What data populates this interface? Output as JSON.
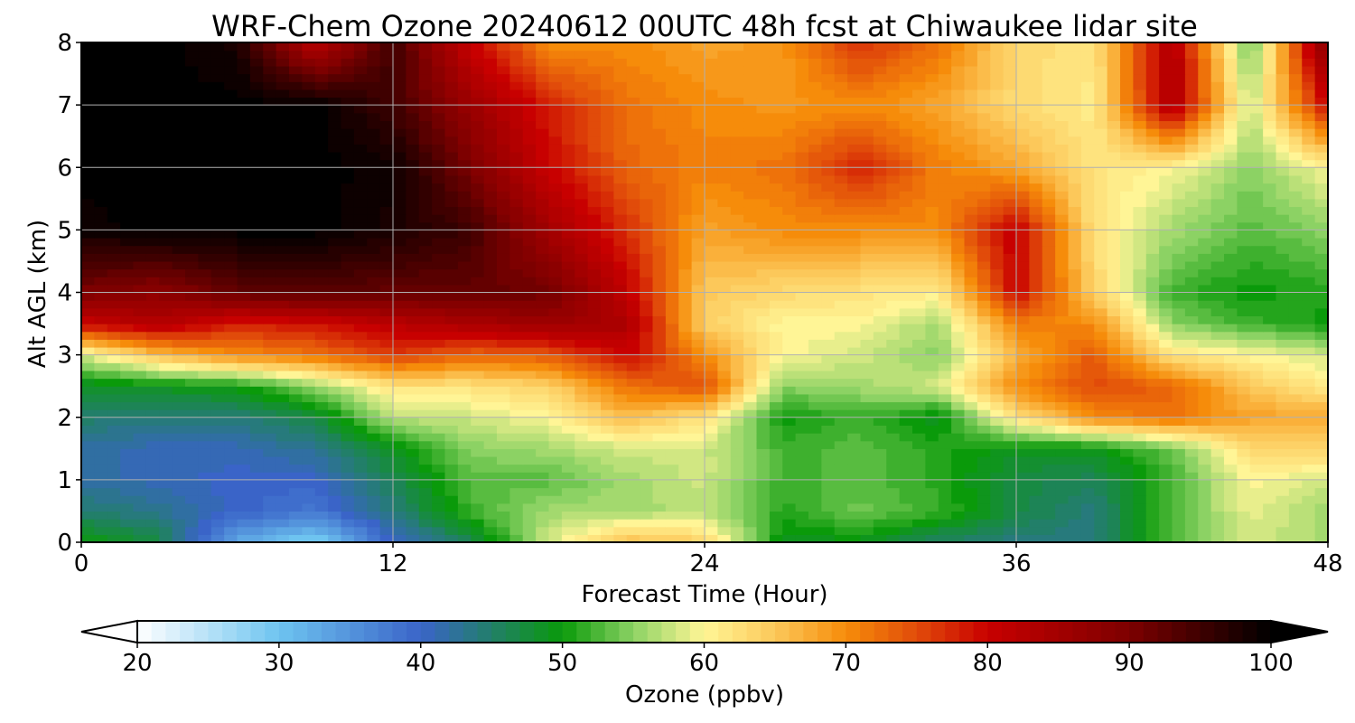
{
  "chart_data": {
    "type": "heatmap",
    "title": "WRF-Chem Ozone  20240612 00UTC 48h fcst at Chiwaukee lidar site",
    "xlabel": "Forecast Time (Hour)",
    "ylabel": "Alt AGL (km)",
    "xlim": [
      0,
      48
    ],
    "ylim": [
      0,
      8
    ],
    "xticks": [
      0,
      12,
      24,
      36,
      48
    ],
    "xtick_labels": [
      "0",
      "12",
      "24",
      "36",
      "48"
    ],
    "yticks": [
      0,
      1,
      2,
      3,
      4,
      5,
      6,
      7,
      8
    ],
    "ytick_labels": [
      "0",
      "1",
      "2",
      "3",
      "4",
      "5",
      "6",
      "7",
      "8"
    ],
    "grid": true,
    "colorbar": {
      "label": "Ozone  (ppbv)",
      "range": [
        20,
        100
      ],
      "ticks": [
        20,
        30,
        40,
        50,
        60,
        70,
        80,
        90,
        100
      ],
      "tick_labels": [
        "20",
        "30",
        "40",
        "50",
        "60",
        "70",
        "80",
        "90",
        "100"
      ],
      "extend": "both",
      "orientation": "horizontal",
      "colors": {
        "20": "#ffffff",
        "30": "#6ec4f0",
        "40": "#3a64c8",
        "50": "#0a9a0a",
        "55": "#8cd264",
        "60": "#fff596",
        "65": "#fcc85a",
        "70": "#f68c0a",
        "75": "#e14b0a",
        "80": "#c80000",
        "90": "#7d0000",
        "100": "#000000"
      }
    },
    "x": [
      0,
      3,
      6,
      9,
      12,
      15,
      18,
      21,
      24,
      27,
      30,
      33,
      36,
      39,
      42,
      45,
      48
    ],
    "y": [
      0,
      0.5,
      1,
      1.5,
      2,
      2.5,
      3,
      3.5,
      4,
      5,
      6,
      7,
      8
    ],
    "z_ppbv": [
      [
        50,
        47,
        33,
        28,
        40,
        46,
        58,
        66,
        64,
        49,
        49,
        45,
        44,
        44,
        53,
        58,
        56
      ],
      [
        45,
        43,
        40,
        38,
        44,
        52,
        56,
        56,
        57,
        51,
        54,
        52,
        47,
        44,
        53,
        59,
        56
      ],
      [
        42,
        41,
        40,
        40,
        46,
        53,
        53,
        56,
        58,
        52,
        53,
        51,
        47,
        46,
        52,
        60,
        58
      ],
      [
        42,
        41,
        41,
        43,
        49,
        55,
        56,
        58,
        58,
        52,
        53,
        51,
        49,
        49,
        54,
        63,
        64
      ],
      [
        45,
        44,
        44,
        47,
        57,
        58,
        60,
        66,
        62,
        50,
        52,
        49,
        62,
        70,
        72,
        68,
        68
      ],
      [
        48,
        49,
        50,
        55,
        62,
        62,
        64,
        72,
        75,
        55,
        56,
        58,
        70,
        75,
        73,
        65,
        61
      ],
      [
        58,
        66,
        70,
        72,
        76,
        73,
        74,
        80,
        70,
        60,
        58,
        55,
        67,
        74,
        62,
        60,
        58
      ],
      [
        80,
        83,
        78,
        79,
        82,
        84,
        86,
        84,
        64,
        60,
        60,
        56,
        71,
        70,
        55,
        52,
        50
      ],
      [
        90,
        88,
        92,
        93,
        92,
        92,
        91,
        81,
        65,
        63,
        62,
        61,
        80,
        64,
        52,
        50,
        51
      ],
      [
        99,
        100,
        100,
        100,
        98,
        95,
        85,
        77,
        68,
        70,
        70,
        70,
        81,
        62,
        56,
        53,
        55
      ],
      [
        100,
        100,
        100,
        100,
        99,
        90,
        80,
        73,
        71,
        72,
        78,
        71,
        68,
        62,
        60,
        55,
        60
      ],
      [
        100,
        100,
        100,
        100,
        95,
        86,
        78,
        72,
        70,
        69,
        70,
        68,
        63,
        61,
        84,
        57,
        80
      ],
      [
        100,
        100,
        98,
        82,
        95,
        80,
        70,
        70,
        68,
        69,
        77,
        72,
        63,
        62,
        84,
        53,
        90
      ]
    ]
  }
}
